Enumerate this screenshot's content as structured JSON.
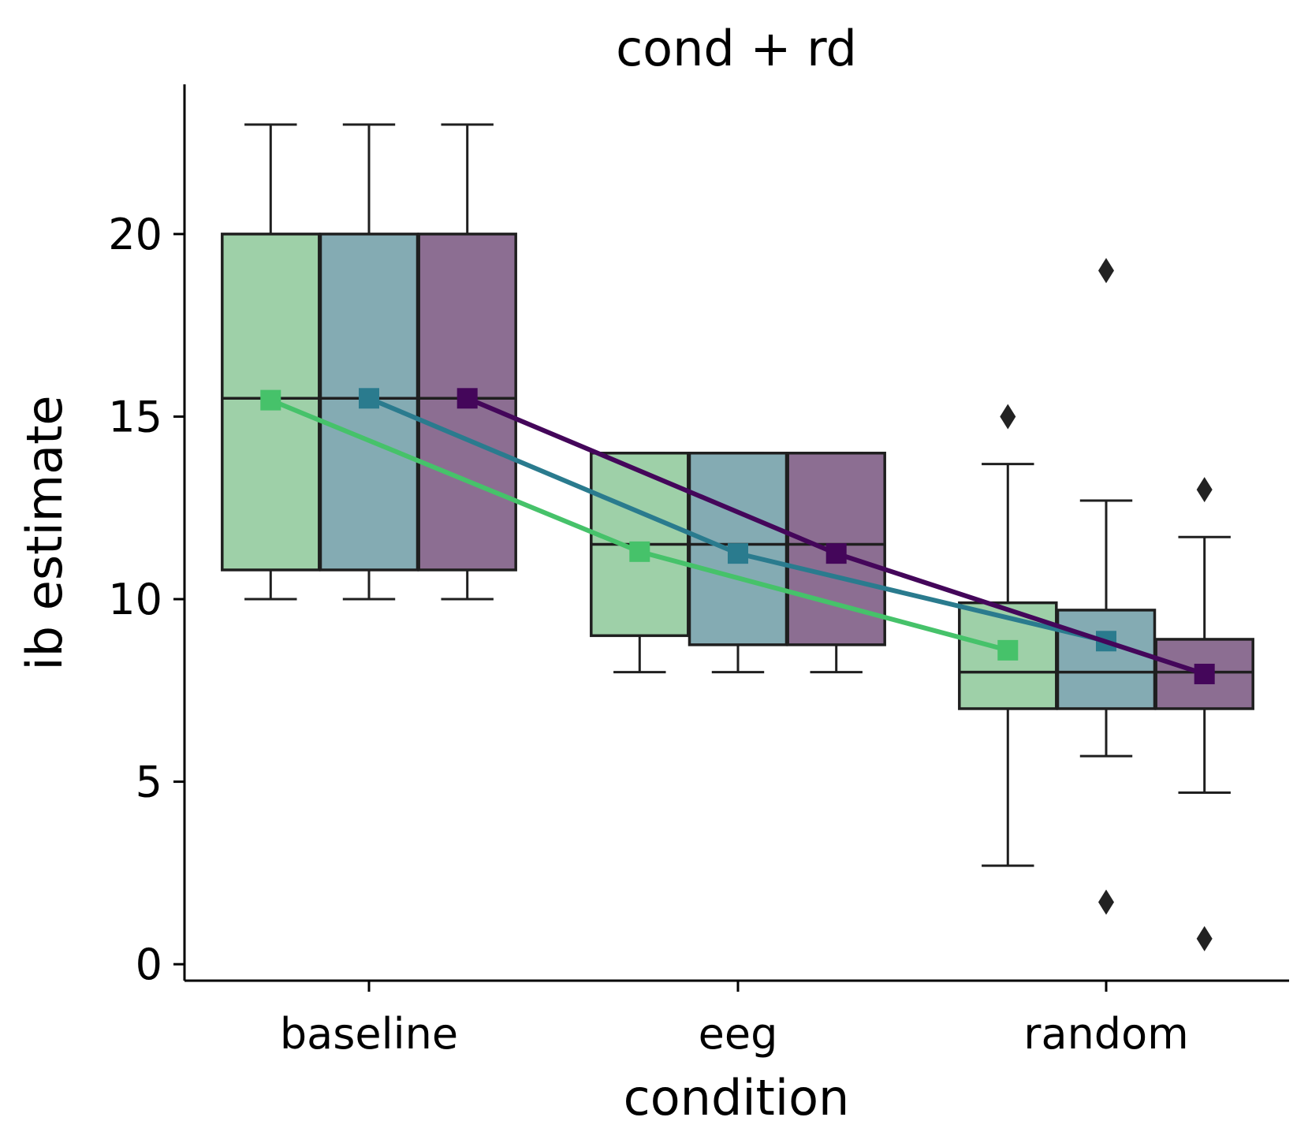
{
  "chart_data": {
    "type": "box",
    "title": "cond + rd",
    "xlabel": "condition",
    "ylabel": "ib estimate",
    "categories": [
      "baseline",
      "eeg",
      "random"
    ],
    "yticks": [
      0,
      5,
      10,
      15,
      20
    ],
    "ylim": [
      -0.45,
      24.1
    ],
    "grid": false,
    "legend": "none",
    "groups": [
      {
        "color": "#9ED0A8",
        "line_color": "#46C26A"
      },
      {
        "color": "#84ABB3",
        "line_color": "#2A7B8E"
      },
      {
        "color": "#8C6E92",
        "line_color": "#44065A"
      }
    ],
    "boxes": [
      [
        {
          "whislo": 10.0,
          "q1": 10.8,
          "med": 15.5,
          "q3": 20.0,
          "whishi": 23.0,
          "fliers": []
        },
        {
          "whislo": 10.0,
          "q1": 10.8,
          "med": 15.5,
          "q3": 20.0,
          "whishi": 23.0,
          "fliers": []
        },
        {
          "whislo": 10.0,
          "q1": 10.8,
          "med": 15.5,
          "q3": 20.0,
          "whishi": 23.0,
          "fliers": []
        }
      ],
      [
        {
          "whislo": 8.0,
          "q1": 9.0,
          "med": 11.5,
          "q3": 14.0,
          "whishi": 14.0,
          "fliers": []
        },
        {
          "whislo": 8.0,
          "q1": 8.75,
          "med": 11.5,
          "q3": 14.0,
          "whishi": 14.0,
          "fliers": []
        },
        {
          "whislo": 8.0,
          "q1": 8.75,
          "med": 11.5,
          "q3": 14.0,
          "whishi": 14.0,
          "fliers": []
        }
      ],
      [
        {
          "whislo": 2.7,
          "q1": 7.0,
          "med": 8.0,
          "q3": 9.9,
          "whishi": 13.7,
          "fliers": [
            15.0
          ]
        },
        {
          "whislo": 5.7,
          "q1": 7.0,
          "med": 8.0,
          "q3": 9.7,
          "whishi": 12.7,
          "fliers": [
            19.0,
            1.7
          ]
        },
        {
          "whislo": 4.7,
          "q1": 7.0,
          "med": 8.0,
          "q3": 8.9,
          "whishi": 11.7,
          "fliers": [
            13.0,
            0.7
          ]
        }
      ]
    ],
    "series": [
      {
        "values": [
          15.45,
          11.3,
          8.6
        ]
      },
      {
        "values": [
          15.5,
          11.25,
          8.85
        ]
      },
      {
        "values": [
          15.5,
          11.25,
          7.95
        ]
      }
    ]
  }
}
